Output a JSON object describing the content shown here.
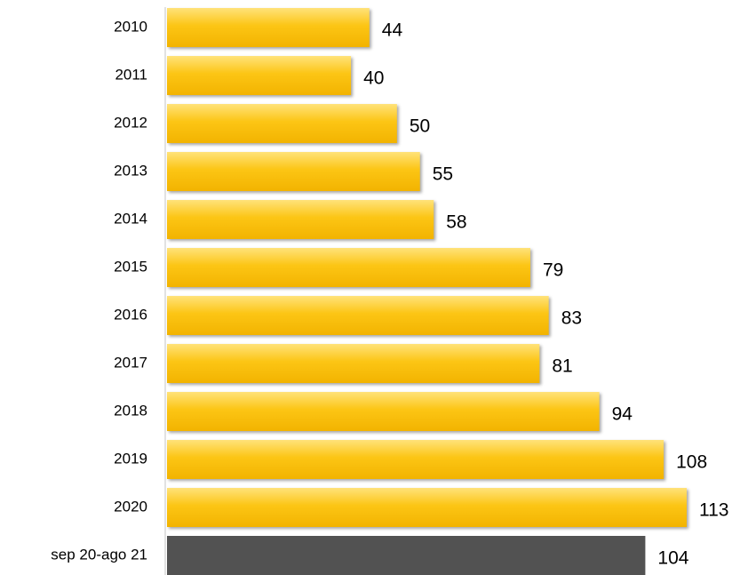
{
  "chart_data": {
    "type": "bar",
    "orientation": "horizontal",
    "categories": [
      "2010",
      "2011",
      "2012",
      "2013",
      "2014",
      "2015",
      "2016",
      "2017",
      "2018",
      "2019",
      "2020",
      "sep 20-ago 21"
    ],
    "values": [
      44,
      40,
      50,
      55,
      58,
      79,
      83,
      81,
      94,
      108,
      113,
      104
    ],
    "data_labels": [
      "44",
      "40",
      "50",
      "55",
      "58",
      "79",
      "83",
      "81",
      "94",
      "108",
      "113",
      "104"
    ],
    "bar_colors": [
      "#fcc514",
      "#fcc514",
      "#fcc514",
      "#fcc514",
      "#fcc514",
      "#fcc514",
      "#fcc514",
      "#fcc514",
      "#fcc514",
      "#fcc514",
      "#fcc514",
      "#525252"
    ],
    "title": "",
    "xlabel": "",
    "ylabel": "",
    "xlim": [
      0,
      113
    ],
    "grid": false,
    "legend": "none"
  }
}
